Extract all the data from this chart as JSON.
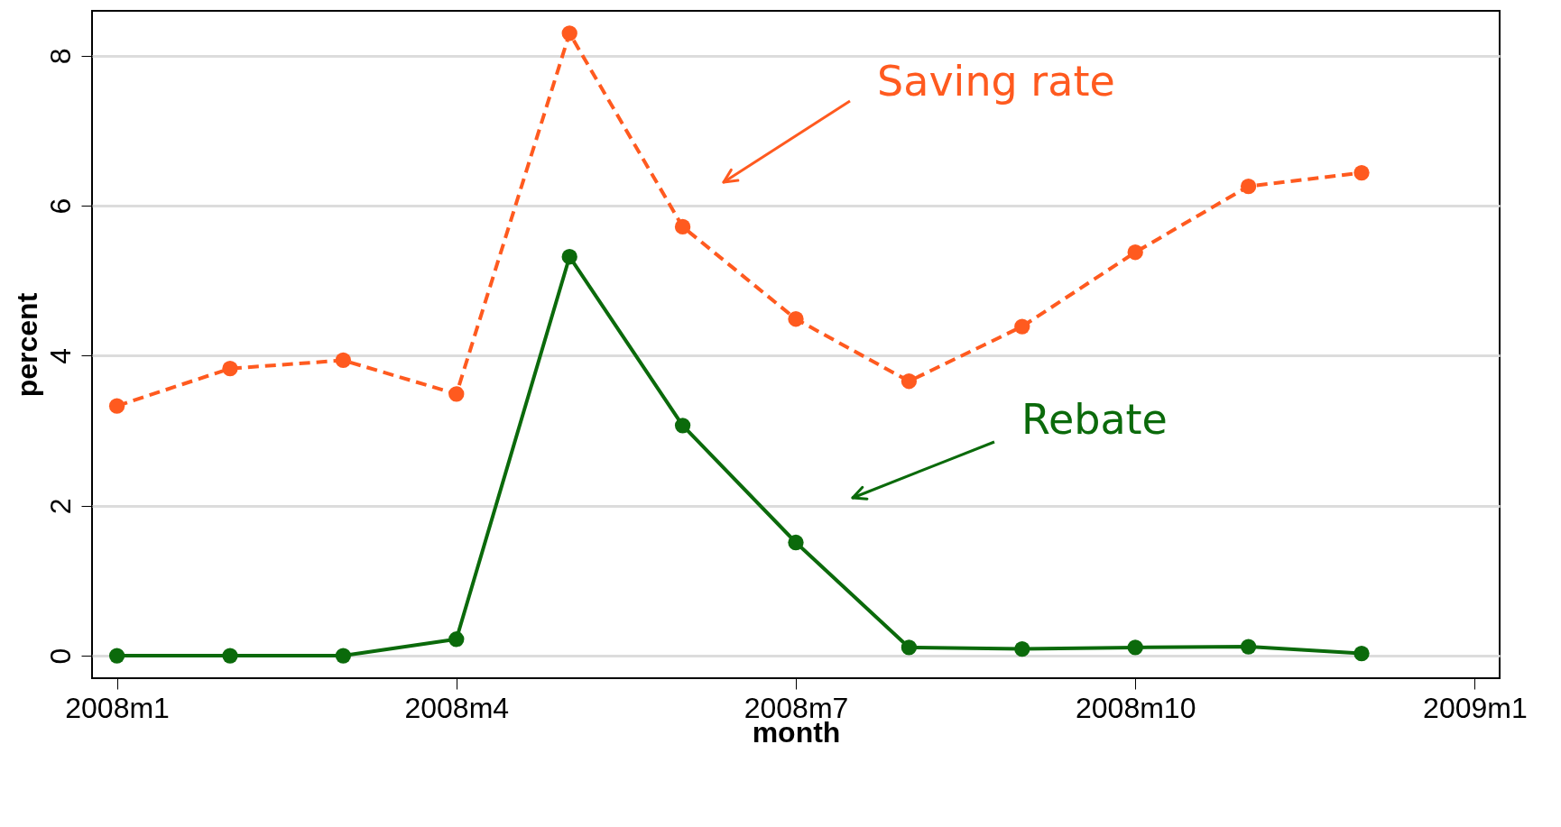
{
  "chart_data": {
    "type": "line",
    "xlabel": "month",
    "ylabel": "percent",
    "categories": [
      "2008m1",
      null,
      null,
      "2008m4",
      null,
      null,
      "2008m7",
      null,
      null,
      "2008m10",
      null,
      null,
      "2009m1"
    ],
    "series": [
      {
        "color": "#ff5a1f",
        "line_style": "dashed",
        "values": [
          3.33,
          3.83,
          3.94,
          3.49,
          8.3,
          5.72,
          4.49,
          3.66,
          4.39,
          5.38,
          6.26,
          6.44,
          null
        ]
      },
      {
        "color": "#0b6a0b",
        "line_style": "solid",
        "values": [
          0,
          0,
          0,
          0.22,
          5.32,
          3.07,
          1.51,
          0.11,
          0.09,
          0.11,
          0.12,
          0.03,
          null
        ]
      }
    ],
    "ylim": [
      -0.3,
      8.6
    ],
    "yticks": [
      0,
      2,
      4,
      6,
      8
    ],
    "grid": "y",
    "marker": "circle",
    "annotations": [
      "Saving rate",
      "Rebate"
    ]
  }
}
